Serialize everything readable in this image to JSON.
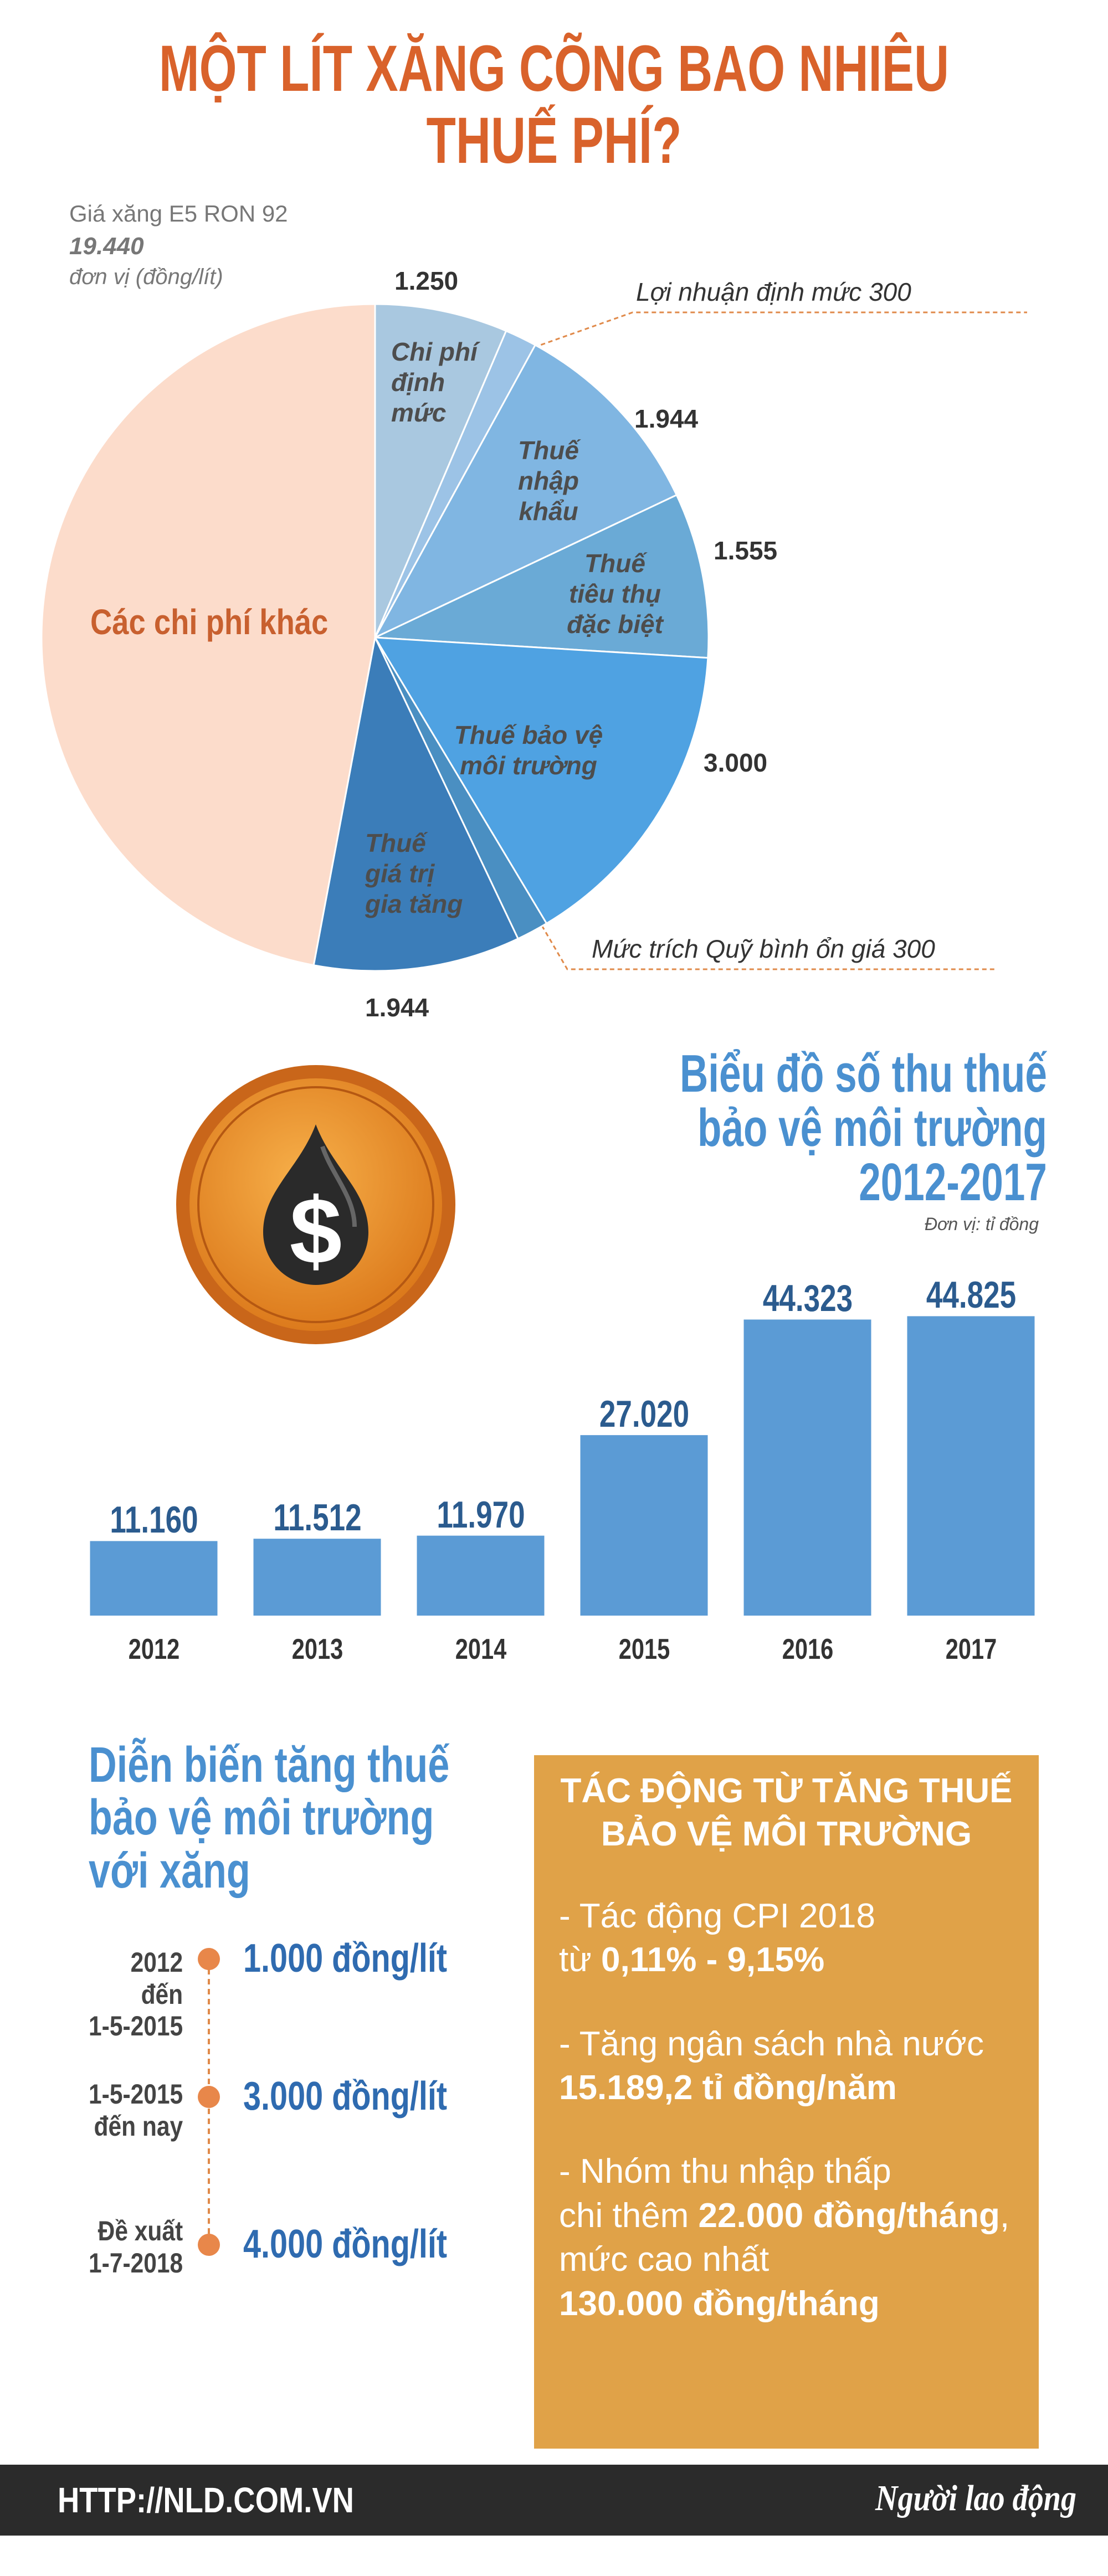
{
  "title": "MỘT LÍT XĂNG CÕNG BAO NHIÊU THUẾ PHÍ?",
  "icon": "$",
  "chart_data": [
    {
      "type": "pie",
      "price_label": "Giá xăng E5 RON 92",
      "total": 19440,
      "total_label": "19.440",
      "unit": "đơn vị (đồng/lít)",
      "categories": [
        "Chi phí\nđịnh\nmức",
        "Lợi nhuận định mức",
        "Thuế\nnhập\nkhẩu",
        "Thuế\ntiêu thụ\nđặc biệt",
        "Thuế bảo vệ\nmôi trường",
        "Mức trích Quỹ bình ổn giá",
        "Thuế\ngiá trị\ngia tăng",
        "Các chi phí khác"
      ],
      "values": [
        1250,
        300,
        1944,
        1555,
        3000,
        300,
        1944,
        9147
      ],
      "value_labels": [
        "1.250",
        "300",
        "1.944",
        "1.555",
        "3.000",
        "300",
        "1.944",
        null
      ],
      "colors": [
        "#a9c8e0",
        "#9cc3e6",
        "#80b6e2",
        "#6aaad6",
        "#4fa2e2",
        "#4a8fc2",
        "#3b7db9",
        "#fcdccb"
      ]
    },
    {
      "type": "bar",
      "title": "Biểu đồ số thu thuế\nbảo vệ môi trường\n2012-2017",
      "unit": "Đơn vị: tỉ đồng",
      "categories": [
        "2012",
        "2013",
        "2014",
        "2015",
        "2016",
        "2017"
      ],
      "values": [
        11160,
        11512,
        11970,
        27020,
        44323,
        44825
      ],
      "value_labels": [
        "11.160",
        "11.512",
        "11.970",
        "27.020",
        "44.323",
        "44.825"
      ],
      "color": "#5b9bd5",
      "ylim": [
        0,
        50000
      ]
    }
  ],
  "timeline": {
    "title": "Diễn biến tăng thuế\nbảo vệ môi trường\nvới xăng",
    "items": [
      {
        "period": "2012\nđến\n1-5-2015",
        "rate": "1.000 đồng/lít"
      },
      {
        "period": "1-5-2015\nđến nay",
        "rate": "3.000 đồng/lít"
      },
      {
        "period": "Đề xuất\n1-7-2018",
        "rate": "4.000 đồng/lít"
      }
    ]
  },
  "impact": {
    "title": "TÁC ĐỘNG TỪ TĂNG THUẾ\nBẢO VỆ MÔI TRƯỜNG",
    "items": [
      [
        "- Tác động CPI 2018\ntừ ",
        "0,11% - 9,15%"
      ],
      [
        "- Tăng ngân sách nhà nước\n",
        "15.189,2 tỉ đồng/năm"
      ],
      [
        "- Nhóm thu nhập thấp\nchi thêm ",
        "22.000 đồng/tháng",
        ",\nmức cao nhất\n",
        "130.000 đồng/tháng"
      ]
    ]
  },
  "footer": {
    "url": "HTTP://NLD.COM.VN",
    "brand": "Người lao động"
  }
}
